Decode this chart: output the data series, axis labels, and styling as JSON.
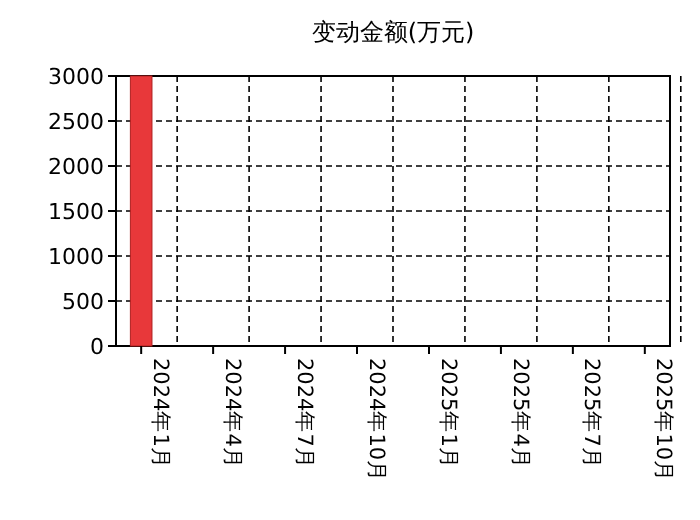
{
  "chart_data": {
    "type": "bar",
    "title": "变动金额(万元)",
    "categories": [
      "2024年1月",
      "2024年4月",
      "2024年7月",
      "2024年10月",
      "2025年1月",
      "2025年4月",
      "2025年7月",
      "2025年10月"
    ],
    "values": [
      3000,
      null,
      null,
      null,
      null,
      null,
      null,
      null
    ],
    "color": "#e8383a",
    "ylim": [
      0,
      3000
    ],
    "yticks": [
      0,
      500,
      1000,
      1500,
      2000,
      2500,
      3000
    ],
    "grid": true
  }
}
